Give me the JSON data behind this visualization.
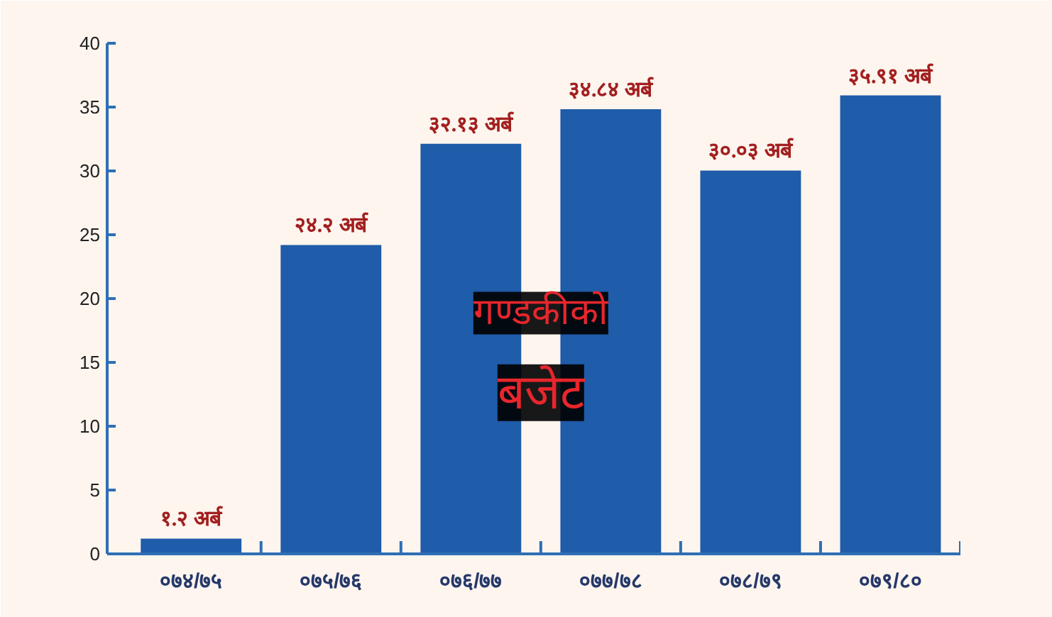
{
  "chart_data": {
    "type": "bar",
    "categories": [
      "०७४/७५",
      "०७५/७६",
      "०७६/७७",
      "०७७/७८",
      "०७८/७९",
      "०७९/८०"
    ],
    "values": [
      1.2,
      24.2,
      32.13,
      34.84,
      30.03,
      35.91
    ],
    "value_labels": [
      "१.२ अर्ब",
      "२४.२ अर्ब",
      "३२.१३ अर्ब",
      "३४.८४ अर्ब",
      "३०.०३ अर्ब",
      "३५.९१ अर्ब"
    ],
    "color": "#1f5ca9",
    "ylim": [
      0,
      40
    ],
    "yticks": [
      0,
      5,
      10,
      15,
      20,
      25,
      30,
      35,
      40
    ],
    "grid": false,
    "annotations": [
      "गण्डकीको",
      "बजेट"
    ]
  }
}
